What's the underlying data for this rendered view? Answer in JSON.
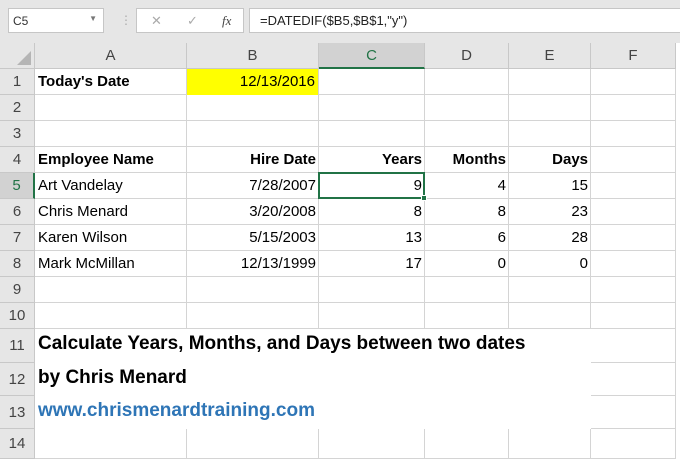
{
  "name_box": "C5",
  "formula_bar": {
    "cancel_icon": "✕",
    "enter_icon": "✓",
    "fx_label": "fx",
    "formula": "=DATEDIF($B5,$B$1,\"y\")"
  },
  "columns": [
    "A",
    "B",
    "C",
    "D",
    "E",
    "F"
  ],
  "rows": [
    "1",
    "2",
    "3",
    "4",
    "5",
    "6",
    "7",
    "8",
    "9",
    "10",
    "11",
    "12",
    "13",
    "14"
  ],
  "cells": {
    "A1": "Today's Date",
    "B1": "12/13/2016",
    "A4": "Employee Name",
    "B4": "Hire Date",
    "C4": "Years",
    "D4": "Months",
    "E4": "Days",
    "employees": [
      {
        "name": "Art Vandelay",
        "hire": "7/28/2007",
        "years": "9",
        "months": "4",
        "days": "15"
      },
      {
        "name": "Chris Menard",
        "hire": "3/20/2008",
        "years": "8",
        "months": "8",
        "days": "23"
      },
      {
        "name": "Karen Wilson",
        "hire": "5/15/2003",
        "years": "13",
        "months": "6",
        "days": "28"
      },
      {
        "name": "Mark McMillan",
        "hire": "12/13/1999",
        "years": "17",
        "months": "0",
        "days": "0"
      }
    ],
    "A11": "Calculate Years, Months, and Days between two dates",
    "A12": "by Chris Menard",
    "A13": "www.chrismenardtraining.com"
  },
  "colors": {
    "highlight": "#ffff00",
    "selection": "#217346",
    "link": "#2e75b6"
  }
}
